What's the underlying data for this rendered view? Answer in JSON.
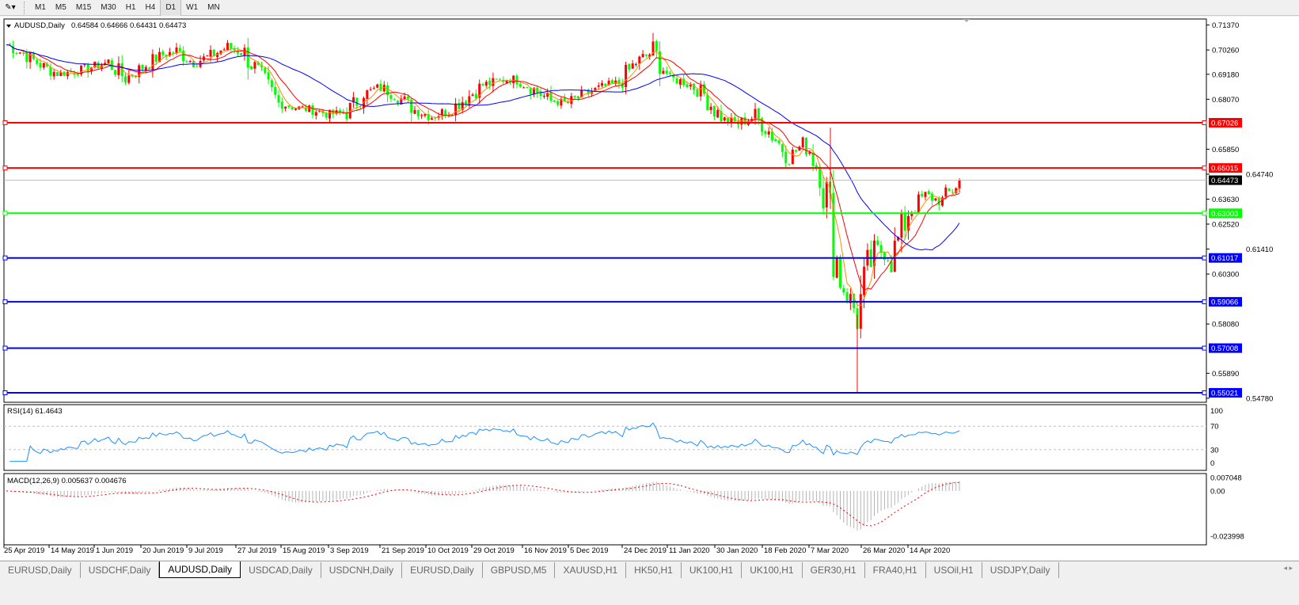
{
  "toolbar": {
    "timeframes": [
      "M1",
      "M5",
      "M15",
      "M30",
      "H1",
      "H4",
      "D1",
      "W1",
      "MN"
    ],
    "active": "D1"
  },
  "chart": {
    "title": "AUDUSD,Daily",
    "ohlc": "0.64584 0.64666 0.64431 0.64473",
    "colors": {
      "bull": "#ff0000",
      "bear": "#00ff00",
      "ma_fast": "#ff8c00",
      "ma_mid": "#ff0000",
      "ma_slow": "#0000ff",
      "last_price": "#000000"
    },
    "price_ticks": [
      "0.71370",
      "0.70260",
      "0.69180",
      "0.68070",
      "0.65850",
      "0.64740",
      "0.63630",
      "0.62520",
      "0.61410",
      "0.60300",
      "0.58080",
      "0.55890",
      "0.54780"
    ],
    "last_price": "0.64473",
    "levels": [
      {
        "value": "0.67026",
        "color": "#ff0000"
      },
      {
        "value": "0.65015",
        "color": "#ff0000"
      },
      {
        "value": "0.63003",
        "color": "#00ff00"
      },
      {
        "value": "0.61017",
        "color": "#0000ff"
      },
      {
        "value": "0.59066",
        "color": "#0000ff"
      },
      {
        "value": "0.57008",
        "color": "#0000ff"
      },
      {
        "value": "0.55021",
        "color": "#0000ff"
      }
    ],
    "date_labels": [
      "25 Apr 2019",
      "14 May 2019",
      "1 Jun 2019",
      "20 Jun 2019",
      "9 Jul 2019",
      "27 Jul 2019",
      "15 Aug 2019",
      "3 Sep 2019",
      "21 Sep 2019",
      "10 Oct 2019",
      "29 Oct 2019",
      "16 Nov 2019",
      "5 Dec 2019",
      "24 Dec 2019",
      "11 Jan 2020",
      "30 Jan 2020",
      "18 Feb 2020",
      "7 Mar 2020",
      "26 Mar 2020",
      "14 Apr 2020"
    ]
  },
  "rsi": {
    "label": "RSI(14) 61.4643",
    "ticks": [
      "100",
      "70",
      "30",
      "0"
    ],
    "color": "#1e90ff"
  },
  "macd": {
    "label": "MACD(12,26,9) 0.005637 0.004676",
    "ticks": [
      "0.007048",
      "0.00",
      "-0.023998"
    ],
    "hist_color": "#b4b4b4",
    "signal_color": "#ff0000"
  },
  "chart_data": {
    "type": "candlestick",
    "symbol": "AUDUSD",
    "timeframe": "Daily",
    "approx_weekly_closes": [
      0.705,
      0.701,
      0.696,
      0.692,
      0.693,
      0.695,
      0.697,
      0.69,
      0.695,
      0.7,
      0.702,
      0.697,
      0.7,
      0.704,
      0.701,
      0.69,
      0.679,
      0.677,
      0.676,
      0.674,
      0.675,
      0.683,
      0.686,
      0.682,
      0.676,
      0.673,
      0.676,
      0.681,
      0.687,
      0.689,
      0.69,
      0.685,
      0.68,
      0.679,
      0.683,
      0.686,
      0.688,
      0.697,
      0.702,
      0.69,
      0.688,
      0.683,
      0.672,
      0.67,
      0.673,
      0.665,
      0.655,
      0.662,
      0.645,
      0.6,
      0.585,
      0.615,
      0.61,
      0.63,
      0.638,
      0.635,
      0.6447
    ],
    "ylim": [
      0.5478,
      0.7137
    ]
  },
  "tabs": [
    "EURUSD,Daily",
    "USDCHF,Daily",
    "AUDUSD,Daily",
    "USDCAD,Daily",
    "USDCNH,Daily",
    "EURUSD,Daily",
    "GBPUSD,M5",
    "XAUUSD,H1",
    "HK50,H1",
    "UK100,H1",
    "UK100,H1",
    "GER30,H1",
    "FRA40,H1",
    "USOil,H1",
    "USDJPY,Daily"
  ],
  "active_tab": "AUDUSD,Daily"
}
